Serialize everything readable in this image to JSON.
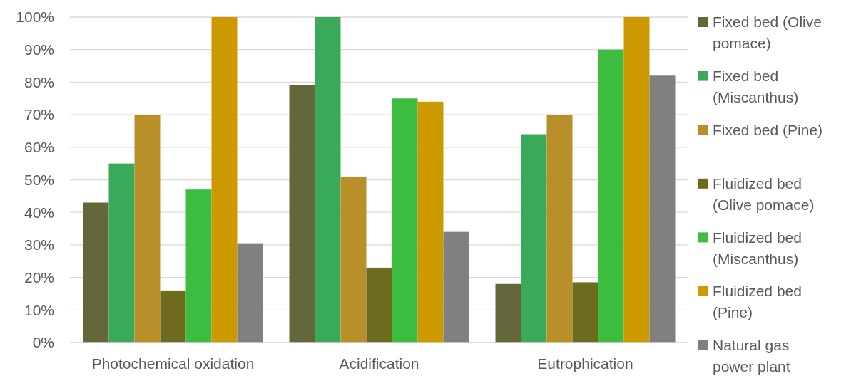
{
  "chart_data": {
    "type": "bar",
    "categories": [
      "Photochemical oxidation",
      "Acidification",
      "Eutrophication"
    ],
    "series": [
      {
        "name": "Fixed bed (Olive pomace)",
        "color": "#65663a",
        "values": [
          43,
          79,
          18
        ]
      },
      {
        "name": "Fixed bed (Miscanthus)",
        "color": "#3aa95a",
        "values": [
          55,
          100,
          64
        ]
      },
      {
        "name": "Fixed bed (Pine)",
        "color": "#b98f2a",
        "values": [
          70,
          51,
          70
        ]
      },
      {
        "name": "Fluidized bed (Olive pomace)",
        "color": "#6e6b1e",
        "values": [
          16,
          23,
          18.5
        ]
      },
      {
        "name": "Fluidized bed (Miscanthus)",
        "color": "#3dbd3f",
        "values": [
          47,
          75,
          90
        ]
      },
      {
        "name": "Fluidized bed (Pine)",
        "color": "#cc9900",
        "values": [
          100,
          74,
          100
        ]
      },
      {
        "name": "Natural gas power plant",
        "color": "#808080",
        "values": [
          30.5,
          34,
          82
        ]
      }
    ],
    "ylim": [
      0,
      100
    ],
    "yticks": [
      {
        "value": 0,
        "label": "0%"
      },
      {
        "value": 10,
        "label": "10%"
      },
      {
        "value": 20,
        "label": "20%"
      },
      {
        "value": 30,
        "label": "30%"
      },
      {
        "value": 40,
        "label": "40%"
      },
      {
        "value": 50,
        "label": "50%"
      },
      {
        "value": 60,
        "label": "60%"
      },
      {
        "value": 70,
        "label": "70%"
      },
      {
        "value": 80,
        "label": "80%"
      },
      {
        "value": 90,
        "label": "90%"
      },
      {
        "value": 100,
        "label": "100%"
      }
    ],
    "grid": "y",
    "legend": "right"
  }
}
